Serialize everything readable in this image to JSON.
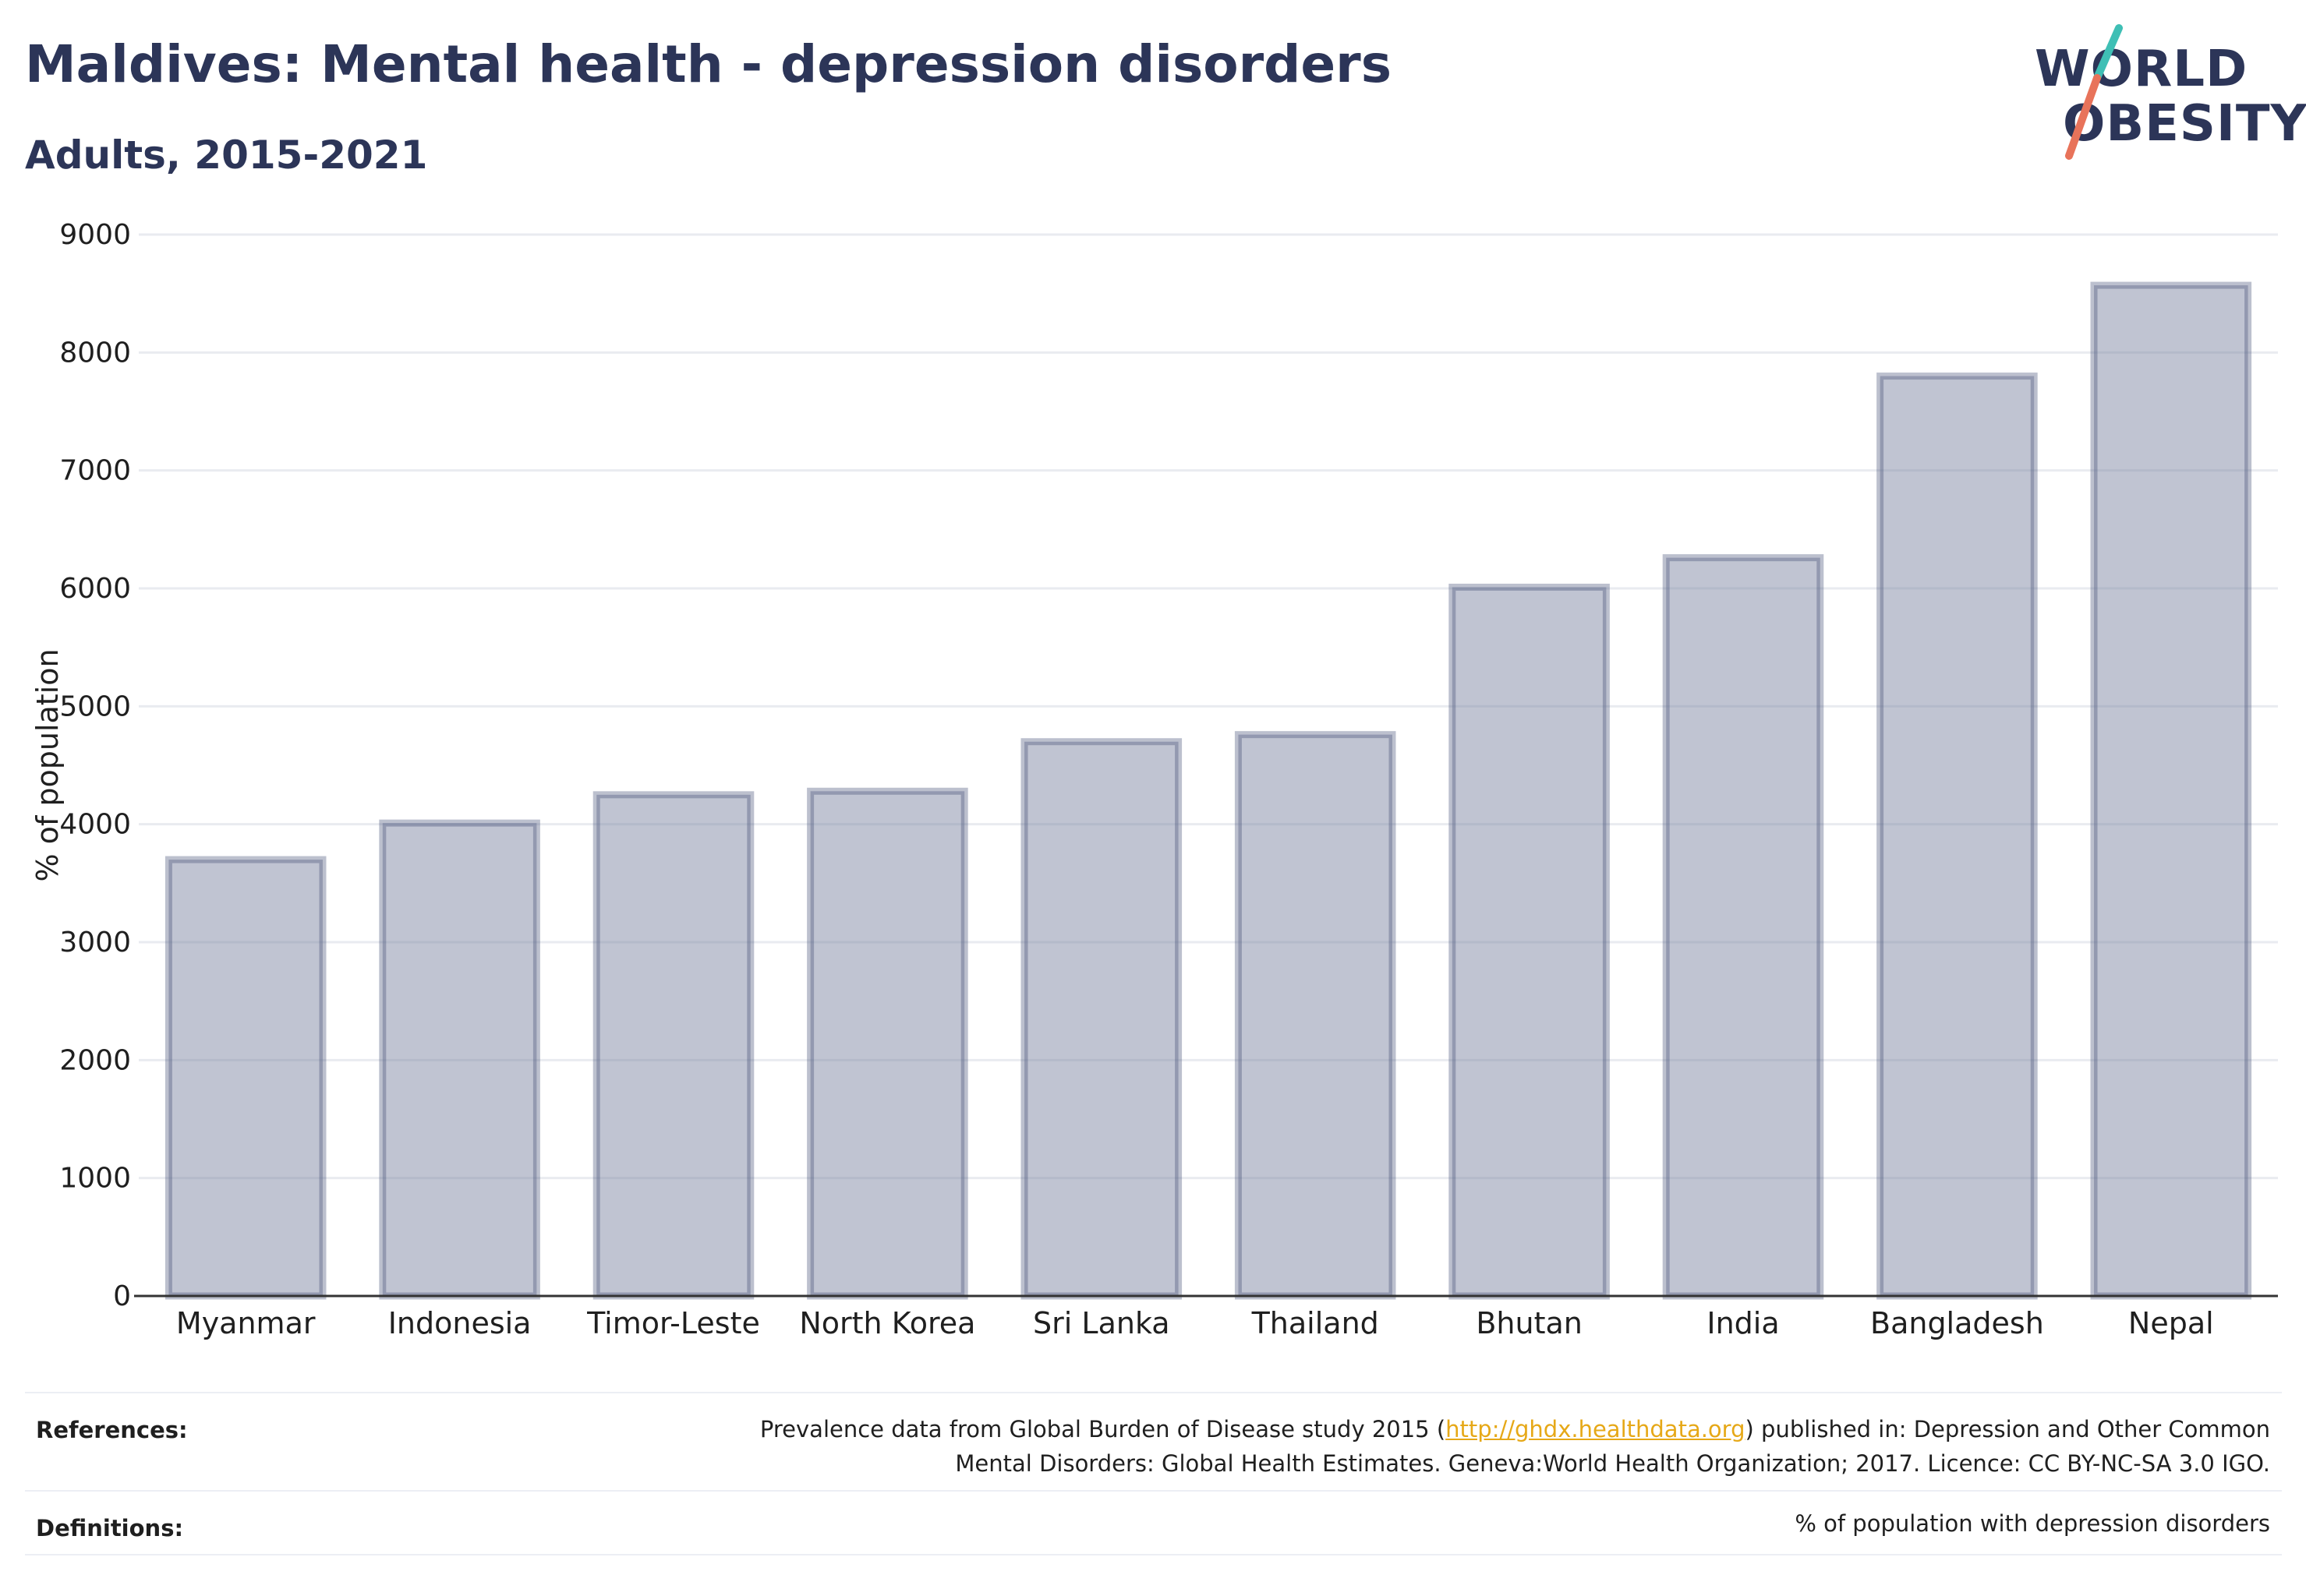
{
  "header": {
    "title": "Maldives: Mental health - depression disorders",
    "subtitle": "Adults, 2015-2021"
  },
  "logo": {
    "line1": "WORLD",
    "line2": "OBESITY",
    "slash_colors": [
      "#3fbfb5",
      "#e8735a"
    ]
  },
  "chart_data": {
    "type": "bar",
    "ylabel": "% of population",
    "xlabel": "",
    "ylim": [
      0,
      9000
    ],
    "yticks": [
      0,
      1000,
      2000,
      3000,
      4000,
      5000,
      6000,
      7000,
      8000,
      9000
    ],
    "categories": [
      "Myanmar",
      "Indonesia",
      "Timor-Leste",
      "North Korea",
      "Sri Lanka",
      "Thailand",
      "Bhutan",
      "India",
      "Bangladesh",
      "Nepal"
    ],
    "values": [
      3700,
      4010,
      4250,
      4280,
      4700,
      4760,
      6010,
      6260,
      7800,
      8570
    ],
    "grid": true,
    "bar_fill": "#7b84a0",
    "bar_stroke": "#3f4a74"
  },
  "footer": {
    "references_label": "References:",
    "references_text_before": "Prevalence data from Global Burden of Disease study 2015 (",
    "references_link": "http://ghdx.healthdata.org",
    "references_text_after": ") published in: Depression and Other Common",
    "references_line2": "Mental Disorders: Global Health Estimates. Geneva:World Health Organization; 2017. Licence: CC BY-NC-SA 3.0 IGO.",
    "definitions_label": "Definitions:",
    "definitions_text": "% of population with depression disorders"
  }
}
